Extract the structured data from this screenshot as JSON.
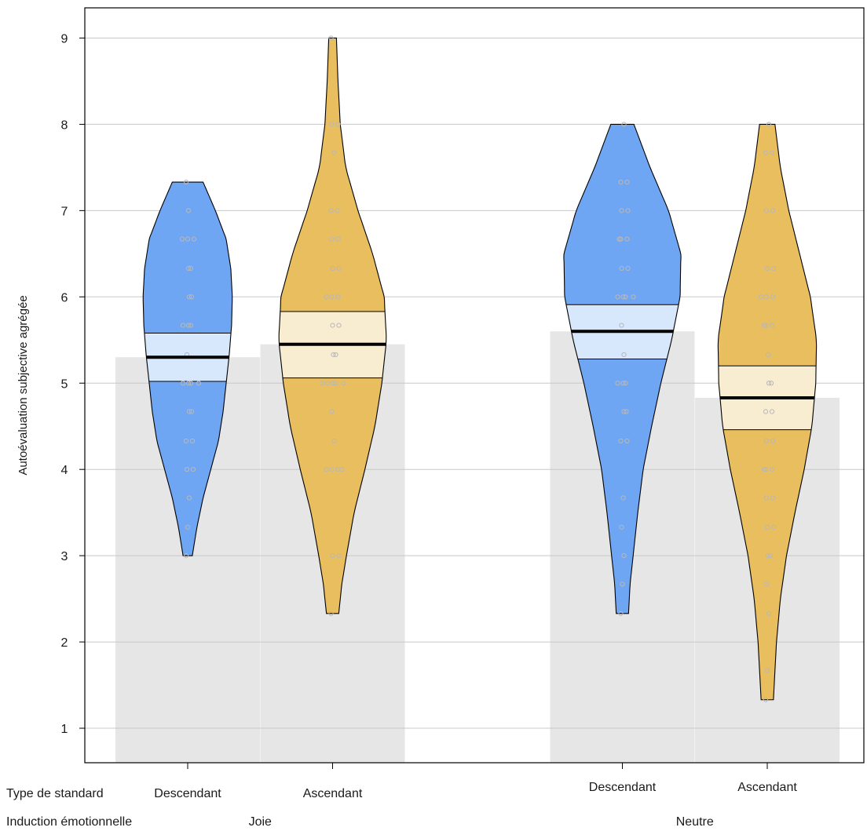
{
  "chart_data": {
    "type": "pirate",
    "ylabel": "Autoévaluation subjective agrégée",
    "ylim": [
      0.6,
      9.35
    ],
    "yticks": [
      1,
      2,
      3,
      4,
      5,
      6,
      7,
      8,
      9
    ],
    "grid": true,
    "row_labels": {
      "standard": "Type de standard",
      "induction": "Induction émotionnelle"
    },
    "groups": [
      {
        "label": "Joie",
        "slot_center": 1.5
      },
      {
        "label": "Neutre",
        "slot_center": 4.5
      }
    ],
    "colors": {
      "Descendant": {
        "fill": "#6fa6f3",
        "band": "#d7e7fc"
      },
      "Ascendant": {
        "fill": "#e9be5e",
        "band": "#f8ecd1"
      },
      "bar": "#e6e6e6",
      "grid": "#c8c8c8",
      "points": "#b8b8b8"
    },
    "series": [
      {
        "group": "Joie",
        "standard": "Descendant",
        "slot": 1,
        "mean": 5.3,
        "ci": [
          5.02,
          5.58
        ],
        "min": 3.0,
        "max": 7.33,
        "density": [
          [
            3.0,
            0.06
          ],
          [
            3.33,
            0.12
          ],
          [
            3.67,
            0.2
          ],
          [
            4.0,
            0.3
          ],
          [
            4.33,
            0.4
          ],
          [
            4.67,
            0.46
          ],
          [
            5.0,
            0.5
          ],
          [
            5.33,
            0.54
          ],
          [
            5.67,
            0.57
          ],
          [
            6.0,
            0.58
          ],
          [
            6.33,
            0.56
          ],
          [
            6.67,
            0.5
          ],
          [
            7.0,
            0.36
          ],
          [
            7.33,
            0.2
          ]
        ],
        "points": [
          3.0,
          3.33,
          3.67,
          4.0,
          4.0,
          4.33,
          4.33,
          4.67,
          4.67,
          5.0,
          5.0,
          5.0,
          5.0,
          5.33,
          5.67,
          5.67,
          5.67,
          6.0,
          6.0,
          6.33,
          6.33,
          6.67,
          6.67,
          6.67,
          7.0,
          7.33
        ]
      },
      {
        "group": "Joie",
        "standard": "Ascendant",
        "slot": 2,
        "mean": 5.45,
        "ci": [
          5.06,
          5.83
        ],
        "min": 2.33,
        "max": 9.0,
        "density": [
          [
            2.33,
            0.08
          ],
          [
            2.67,
            0.12
          ],
          [
            3.0,
            0.18
          ],
          [
            3.5,
            0.28
          ],
          [
            4.0,
            0.42
          ],
          [
            4.5,
            0.55
          ],
          [
            5.0,
            0.64
          ],
          [
            5.5,
            0.7
          ],
          [
            6.0,
            0.67
          ],
          [
            6.5,
            0.52
          ],
          [
            7.0,
            0.33
          ],
          [
            7.5,
            0.17
          ],
          [
            8.0,
            0.1
          ],
          [
            8.5,
            0.07
          ],
          [
            9.0,
            0.05
          ]
        ],
        "points": [
          2.33,
          3.0,
          3.0,
          4.0,
          4.0,
          4.0,
          4.0,
          4.33,
          4.67,
          5.0,
          5.0,
          5.0,
          5.0,
          5.0,
          5.33,
          5.33,
          5.67,
          5.67,
          6.0,
          6.0,
          6.0,
          6.33,
          6.33,
          6.67,
          6.67,
          7.0,
          7.0,
          7.67,
          8.0,
          8.0,
          9.0
        ]
      },
      {
        "group": "Neutre",
        "standard": "Descendant",
        "slot": 4,
        "mean": 5.6,
        "ci": [
          5.28,
          5.91
        ],
        "min": 2.33,
        "max": 8.0,
        "density": [
          [
            2.33,
            0.08
          ],
          [
            2.67,
            0.1
          ],
          [
            3.0,
            0.14
          ],
          [
            3.5,
            0.2
          ],
          [
            4.0,
            0.27
          ],
          [
            4.5,
            0.38
          ],
          [
            5.0,
            0.5
          ],
          [
            5.5,
            0.64
          ],
          [
            6.0,
            0.75
          ],
          [
            6.5,
            0.76
          ],
          [
            7.0,
            0.6
          ],
          [
            7.5,
            0.36
          ],
          [
            8.0,
            0.15
          ]
        ],
        "points": [
          2.33,
          2.67,
          3.0,
          3.33,
          3.67,
          4.33,
          4.33,
          4.67,
          4.67,
          5.0,
          5.0,
          5.0,
          5.33,
          5.67,
          6.0,
          6.0,
          6.0,
          6.0,
          6.33,
          6.33,
          6.67,
          6.67,
          6.67,
          7.0,
          7.0,
          7.33,
          7.33,
          8.0
        ]
      },
      {
        "group": "Neutre",
        "standard": "Ascendant",
        "slot": 5,
        "mean": 4.83,
        "ci": [
          4.46,
          5.2
        ],
        "min": 1.33,
        "max": 8.0,
        "density": [
          [
            1.33,
            0.08
          ],
          [
            1.67,
            0.1
          ],
          [
            2.0,
            0.12
          ],
          [
            2.5,
            0.17
          ],
          [
            3.0,
            0.25
          ],
          [
            3.5,
            0.36
          ],
          [
            4.0,
            0.48
          ],
          [
            4.5,
            0.58
          ],
          [
            5.0,
            0.63
          ],
          [
            5.5,
            0.64
          ],
          [
            6.0,
            0.56
          ],
          [
            6.5,
            0.42
          ],
          [
            7.0,
            0.28
          ],
          [
            7.5,
            0.17
          ],
          [
            8.0,
            0.1
          ]
        ],
        "points": [
          1.33,
          1.67,
          2.33,
          2.67,
          3.0,
          3.0,
          3.33,
          3.33,
          3.67,
          3.67,
          4.0,
          4.0,
          4.0,
          4.33,
          4.33,
          4.67,
          4.67,
          5.0,
          5.0,
          5.33,
          5.67,
          5.67,
          5.67,
          6.0,
          6.0,
          6.0,
          6.33,
          6.33,
          7.0,
          7.0,
          7.67,
          7.67,
          8.0
        ]
      }
    ]
  }
}
